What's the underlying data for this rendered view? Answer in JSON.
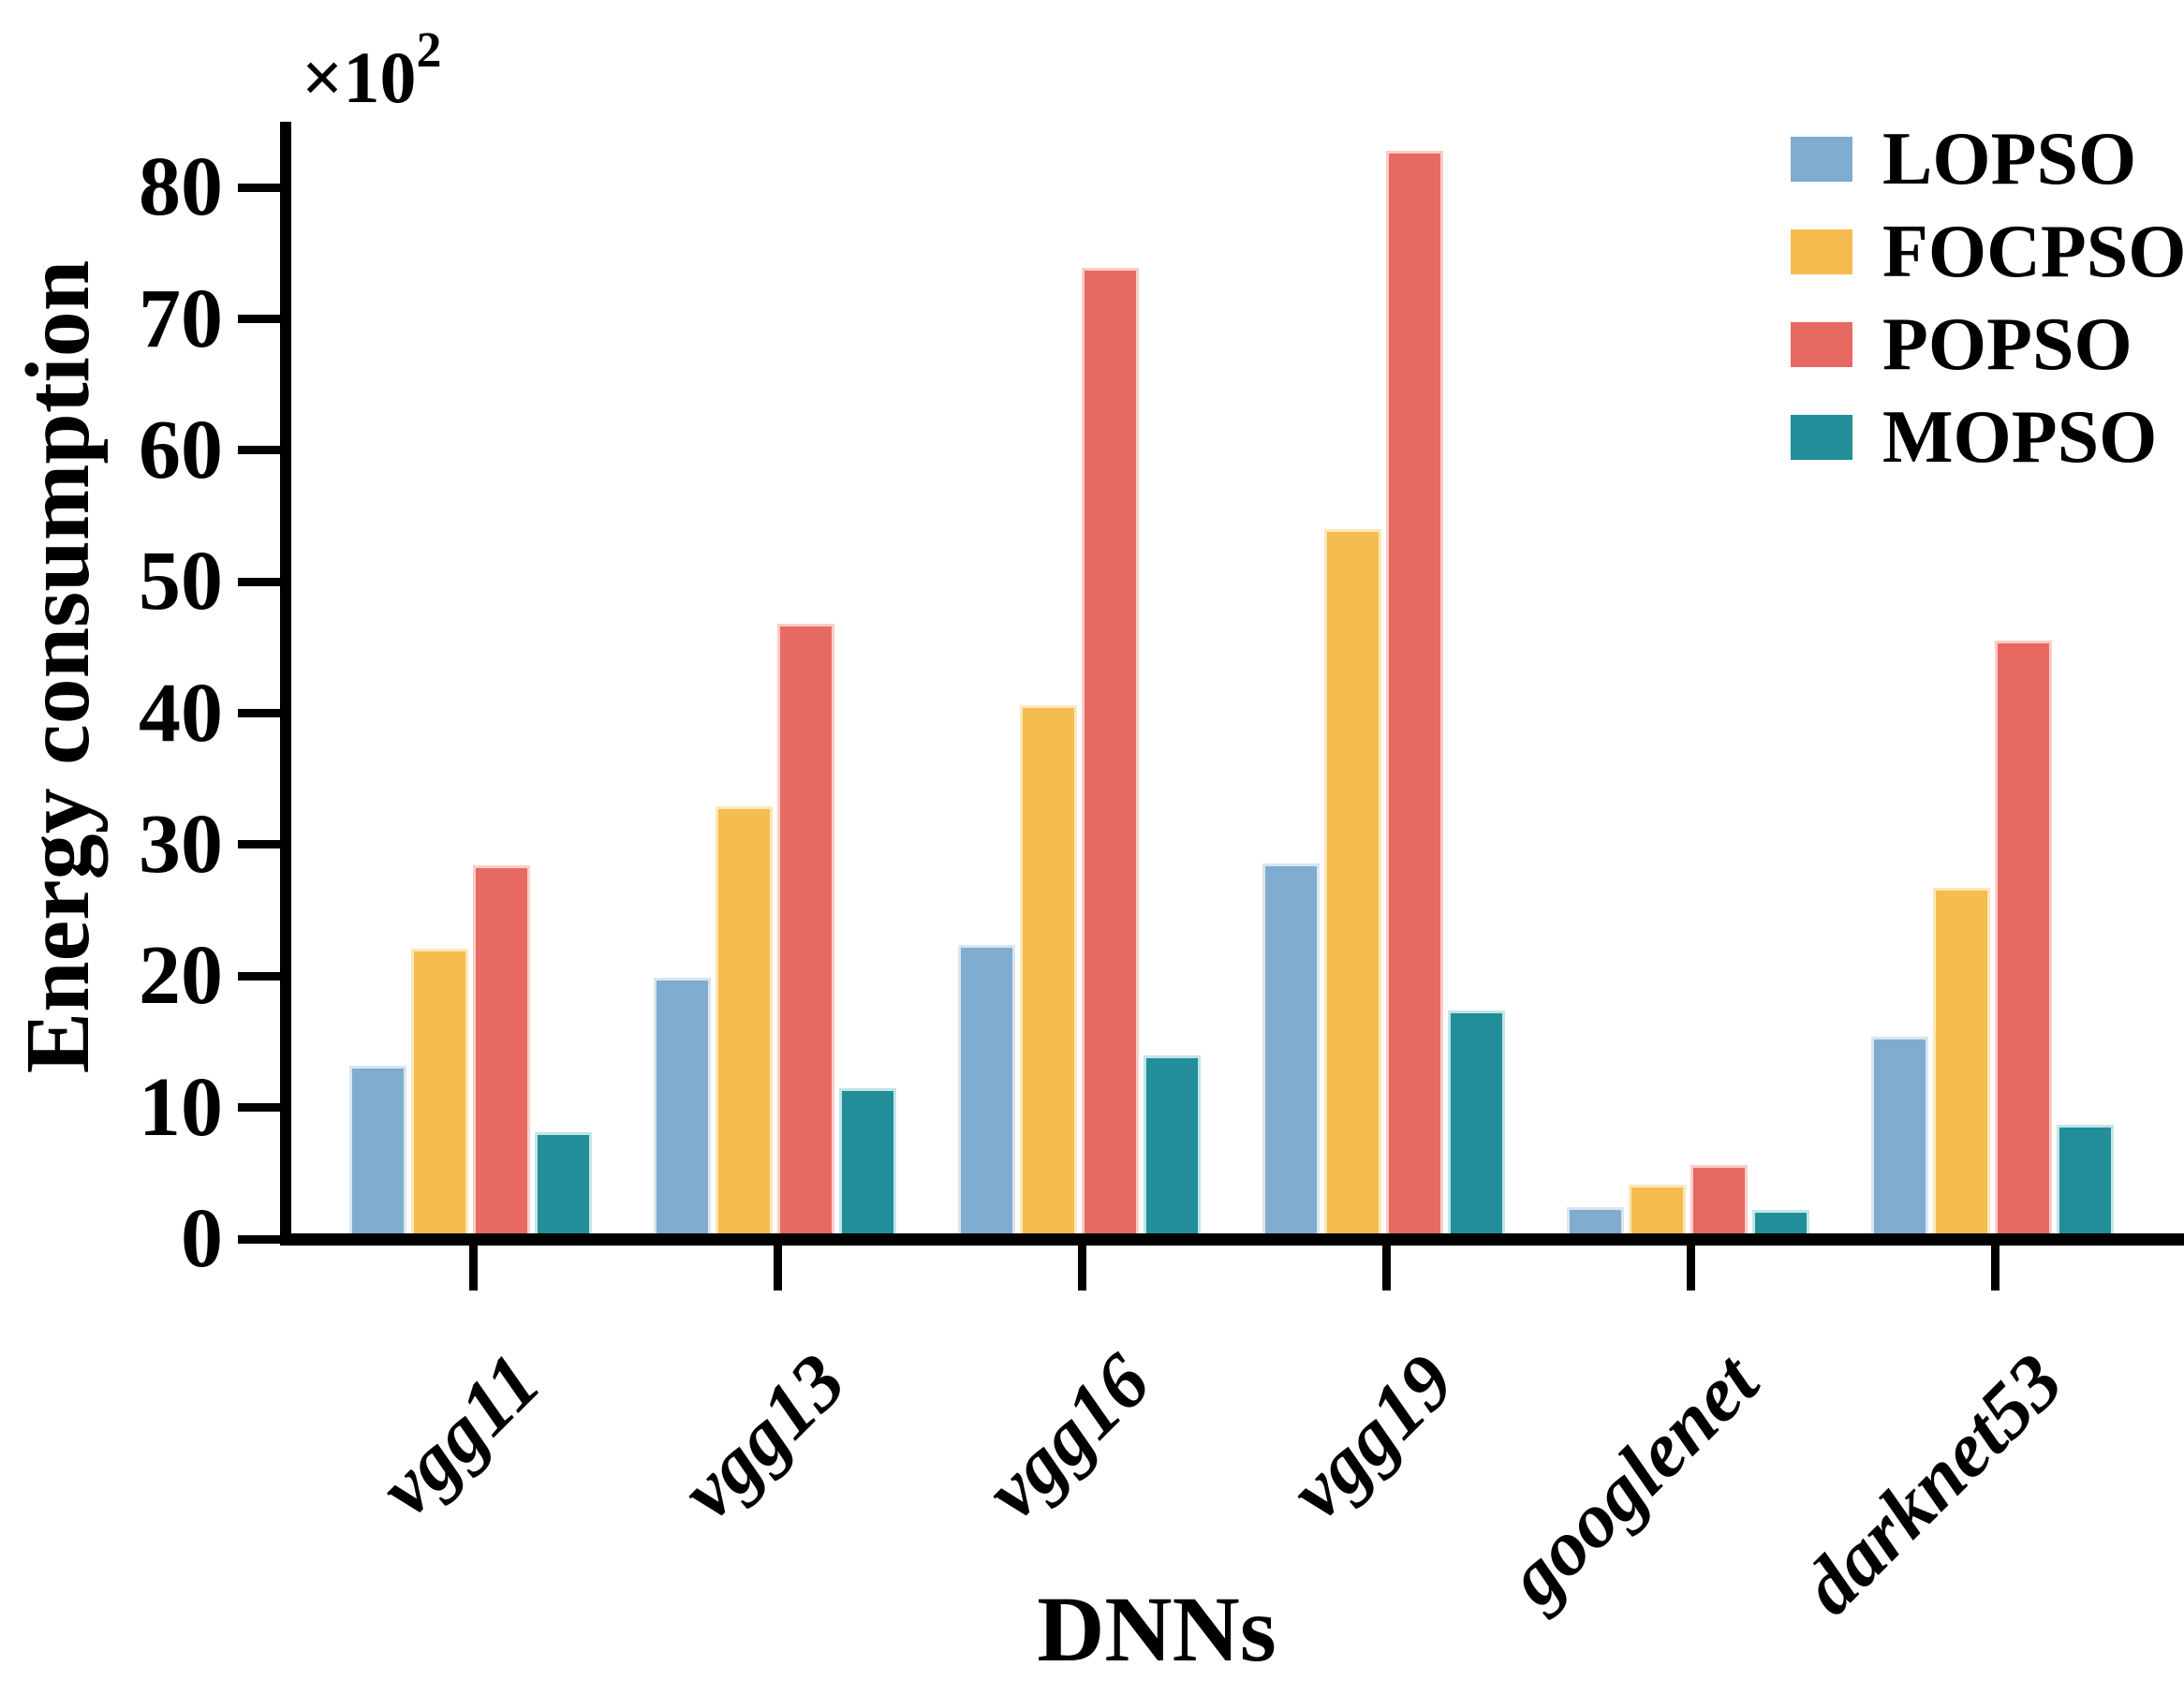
{
  "figure": {
    "offset_label": "×10",
    "offset_exponent": "2"
  },
  "chart_data": {
    "type": "bar",
    "title": "",
    "xlabel": "DNNs",
    "ylabel": "Energy consumption",
    "y_multiplier": "×10²",
    "categories": [
      "vgg11",
      "vgg13",
      "vgg16",
      "vgg19",
      "googlenet",
      "darknet53"
    ],
    "series": [
      {
        "name": "LOPSO",
        "color": "#7FACCF",
        "edge_color": "#D9E6F1",
        "values": [
          13.2,
          19.9,
          22.4,
          28.6,
          2.4,
          15.4
        ]
      },
      {
        "name": "FOCPSO",
        "color": "#F5BC4F",
        "edge_color": "#FCE7B9",
        "values": [
          22.1,
          32.9,
          40.6,
          54.0,
          4.1,
          26.7
        ]
      },
      {
        "name": "POPSO",
        "color": "#E76A62",
        "edge_color": "#F8CDC9",
        "values": [
          28.4,
          46.8,
          73.9,
          82.8,
          5.6,
          45.5
        ]
      },
      {
        "name": "MOPSO",
        "color": "#218E99",
        "edge_color": "#C2E5E6",
        "values": [
          8.1,
          11.5,
          14.0,
          17.4,
          2.2,
          8.7
        ]
      }
    ],
    "yticks": [
      0,
      10,
      20,
      30,
      40,
      50,
      60,
      70,
      80
    ],
    "ylim": [
      0,
      85
    ],
    "grid": false,
    "legend_position": "upper right",
    "axis_color": "#000000",
    "background_color": "#ffffff"
  }
}
